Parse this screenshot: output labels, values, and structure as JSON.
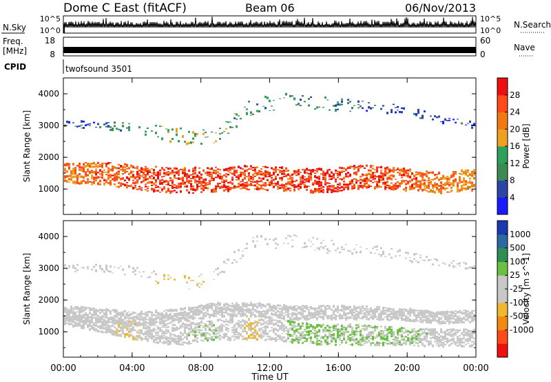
{
  "header": {
    "station": "Dome C East (fitACF)",
    "beam": "Beam 06",
    "date": "06/Nov/2013"
  },
  "sky_panel": {
    "left_label": "N.Sky",
    "left_ticks": [
      "10^5",
      "10^0"
    ],
    "right_label": "N.Search",
    "right_ticks": [
      "10^5",
      "10^0"
    ]
  },
  "freq_panel": {
    "left_label_1": "Freq.",
    "left_label_2": "[MHz]",
    "left_ticks": [
      "18",
      "8"
    ],
    "right_label": "Nave",
    "right_ticks": [
      "60",
      "0"
    ]
  },
  "cpid": {
    "label": "CPID",
    "value": "twofsound 3501"
  },
  "colors": {
    "power_scale": [
      "#1a1aff",
      "#2a46a8",
      "#3e8a55",
      "#2ea05a",
      "#f0a020",
      "#f07a10",
      "#ff4a1a",
      "#ee1010"
    ],
    "velocity_scale": [
      "#ee1010",
      "#ff4a1a",
      "#f08a10",
      "#f0b830",
      "#c8c8c8",
      "#c8c8c8",
      "#6ac040",
      "#2f8f50",
      "#2a6aa0",
      "#1a3ab0"
    ]
  },
  "chart_data": [
    {
      "type": "heatmap",
      "title": "",
      "xlabel": "",
      "ylabel": "Slant Range [km]",
      "x_ticks": [
        "00:00",
        "04:00",
        "08:00",
        "12:00",
        "16:00",
        "20:00",
        "00:00"
      ],
      "y_ticks": [
        "1000",
        "2000",
        "3000",
        "4000"
      ],
      "ylim": [
        200,
        4500
      ],
      "colorbar_label": "Power [dB]",
      "colorbar_ticks": [
        "4",
        "8",
        "12",
        "16",
        "20",
        "24",
        "28"
      ],
      "clim": [
        0,
        32
      ],
      "layers": [
        {
          "range_center": [
            1500,
            1500,
            1350,
            1250,
            1300,
            1350,
            1300,
            1250,
            1400,
            1300,
            1200,
            1300
          ],
          "range_width": [
            600,
            650,
            700,
            750,
            700,
            700,
            650,
            700,
            650,
            650,
            600,
            600
          ],
          "power": [
            22,
            24,
            26,
            28,
            27,
            26,
            27,
            28,
            26,
            25,
            22,
            20
          ]
        },
        {
          "range_center": [
            3050,
            3000,
            2900,
            2700,
            2600,
            3600,
            3800,
            3700,
            3600,
            3500,
            3200,
            3000
          ],
          "range_width": [
            200,
            200,
            300,
            500,
            400,
            500,
            400,
            400,
            300,
            300,
            200,
            200
          ],
          "power": [
            6,
            8,
            10,
            16,
            14,
            10,
            12,
            10,
            8,
            6,
            4,
            4
          ]
        }
      ]
    },
    {
      "type": "heatmap",
      "title": "",
      "xlabel": "Time UT",
      "ylabel": "Slant Range [km]",
      "x_ticks": [
        "00:00",
        "04:00",
        "08:00",
        "12:00",
        "16:00",
        "20:00",
        "00:00"
      ],
      "y_ticks": [
        "1000",
        "2000",
        "3000",
        "4000"
      ],
      "ylim": [
        200,
        4500
      ],
      "colorbar_label": "Velocity [m s^-1]",
      "colorbar_ticks": [
        "1000",
        "500",
        "100",
        "25",
        "-25",
        "-100",
        "-500",
        "-1000"
      ],
      "clim": [
        -1200,
        1200
      ],
      "layers": [
        {
          "range_center": [
            1600,
            1500,
            1400,
            1500,
            1700,
            1700,
            1600,
            1600,
            1600,
            1550,
            1450,
            1500
          ],
          "range_width": [
            400,
            400,
            400,
            400,
            400,
            400,
            400,
            400,
            400,
            350,
            350,
            350
          ],
          "velocity": [
            0,
            0,
            0,
            0,
            10,
            0,
            0,
            0,
            0,
            0,
            0,
            0
          ]
        },
        {
          "range_center": [
            1400,
            1200,
            1000,
            900,
            1050,
            1100,
            1000,
            900,
            900,
            850,
            800,
            800
          ],
          "range_width": [
            300,
            400,
            500,
            600,
            600,
            600,
            600,
            600,
            600,
            500,
            500,
            500
          ],
          "velocity": [
            -80,
            -150,
            -200,
            150,
            200,
            -300,
            250,
            300,
            200,
            250,
            120,
            100
          ]
        },
        {
          "range_center": [
            3000,
            3000,
            2900,
            2500,
            2700,
            3800,
            3900,
            3700,
            3600,
            3400,
            3200,
            3000
          ],
          "range_width": [
            200,
            200,
            300,
            400,
            400,
            500,
            400,
            400,
            300,
            300,
            200,
            200
          ],
          "velocity": [
            0,
            0,
            -50,
            -300,
            -200,
            0,
            0,
            0,
            50,
            0,
            0,
            0
          ]
        }
      ]
    }
  ]
}
